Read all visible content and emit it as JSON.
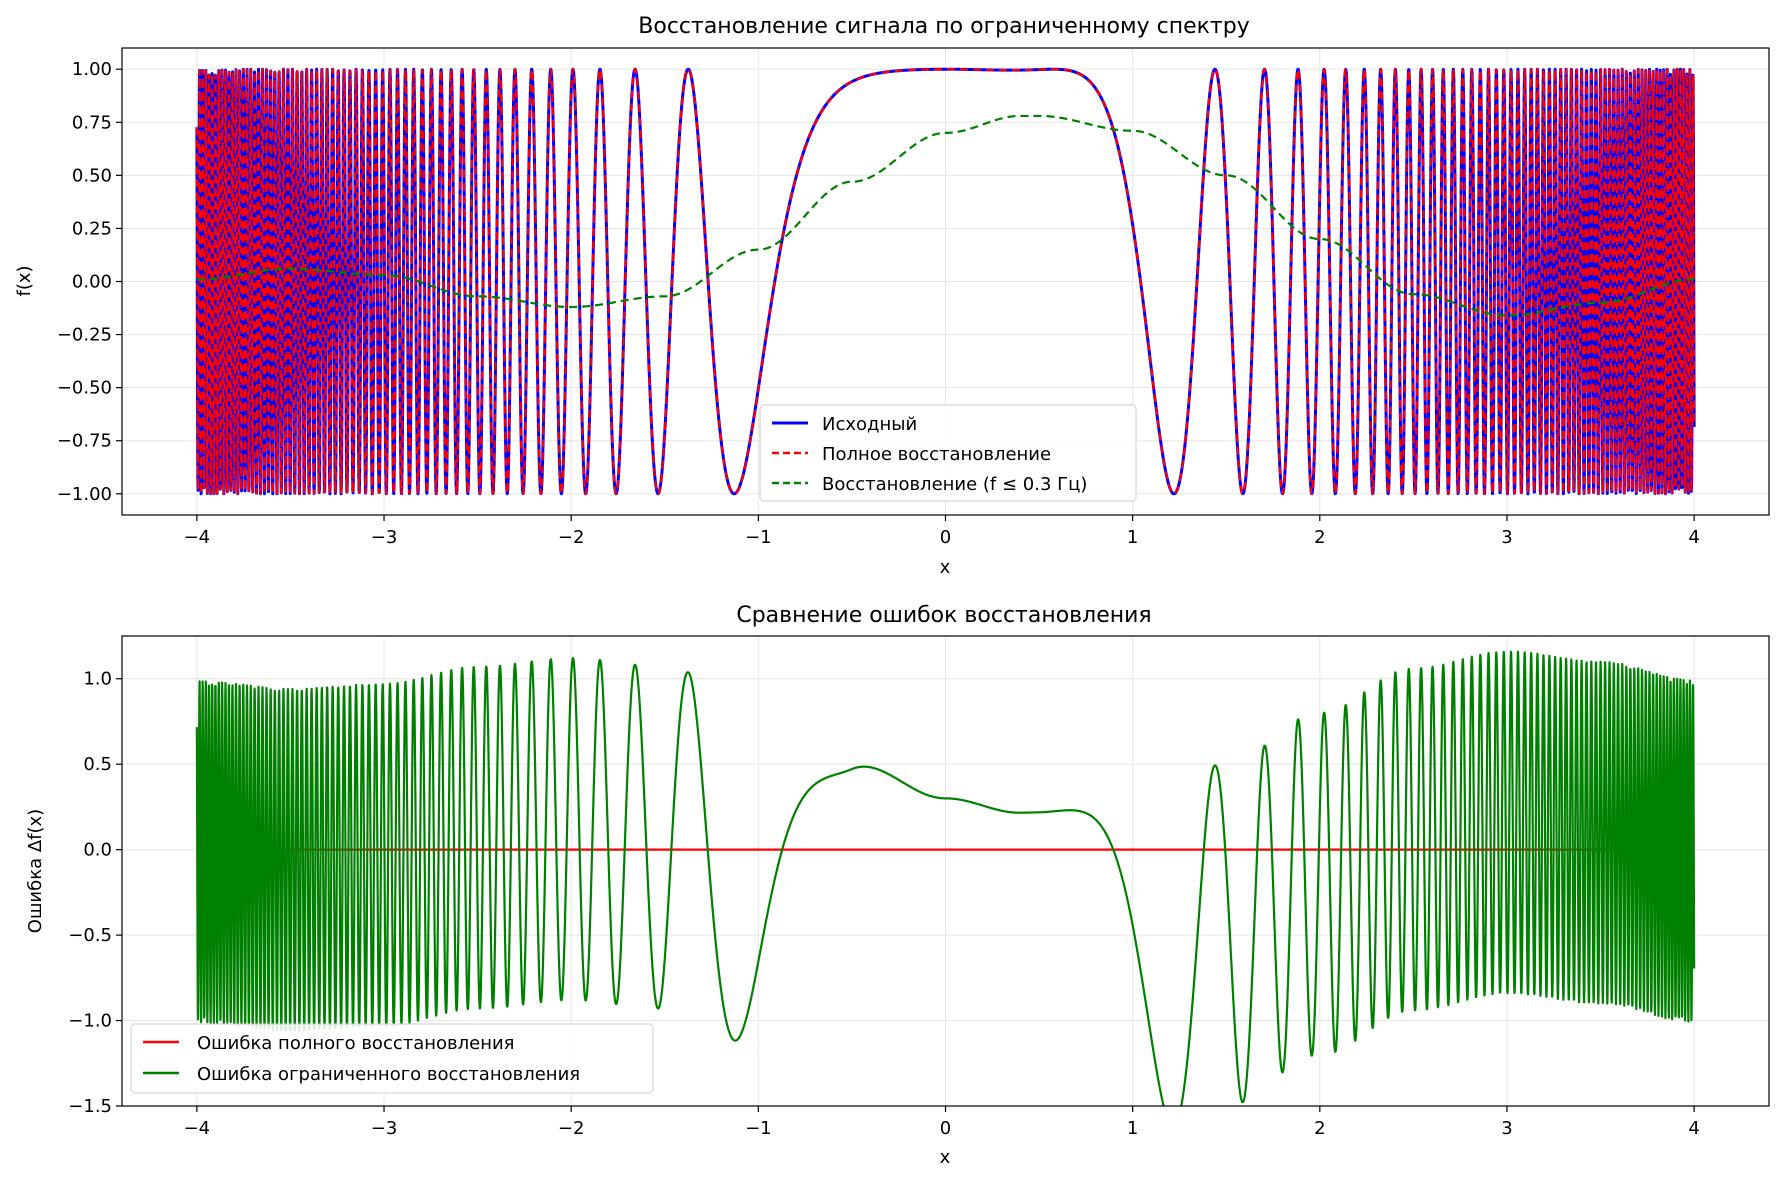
{
  "chart_data": [
    {
      "type": "line",
      "title": "Восстановление сигнала по ограниченному спектру",
      "xlabel": "x",
      "ylabel": "f(x)",
      "xlim": [
        -4.4,
        4.4
      ],
      "ylim": [
        -1.1,
        1.1
      ],
      "grid": true,
      "legend_position": "lower-center",
      "x_ticks": [
        -4,
        -3,
        -2,
        -1,
        0,
        1,
        2,
        3,
        4
      ],
      "x_tick_labels": [
        "−4",
        "−3",
        "−2",
        "−1",
        "0",
        "1",
        "2",
        "3",
        "4"
      ],
      "y_ticks": [
        -1.0,
        -0.75,
        -0.5,
        -0.25,
        0.0,
        0.25,
        0.5,
        0.75,
        1.0
      ],
      "y_tick_labels": [
        "−1.00",
        "−0.75",
        "−0.50",
        "−0.25",
        "0.00",
        "0.25",
        "0.50",
        "0.75",
        "1.00"
      ],
      "series": [
        {
          "name": "Исходный",
          "color": "#0000ff",
          "style": "solid",
          "model": "signal",
          "x_range": [
            -4,
            4
          ]
        },
        {
          "name": "Полное восстановление",
          "color": "#ff0000",
          "style": "dashed",
          "model": "signal",
          "x_range": [
            -4,
            4
          ]
        },
        {
          "name": "Восстановление (f ≤ 0.3 Гц)",
          "color": "#008000",
          "style": "dashed",
          "model": "lowpass",
          "x": [
            -4.0,
            -3.5,
            -3.0,
            -2.5,
            -2.0,
            -1.5,
            -1.0,
            -0.5,
            0.0,
            0.4,
            0.5,
            1.0,
            1.5,
            2.0,
            2.5,
            3.0,
            3.5,
            4.0
          ],
          "y": [
            0.01,
            0.06,
            0.03,
            -0.07,
            -0.12,
            -0.07,
            0.15,
            0.47,
            0.7,
            0.78,
            0.78,
            0.71,
            0.5,
            0.2,
            -0.06,
            -0.16,
            -0.1,
            0.01
          ]
        }
      ]
    },
    {
      "type": "line",
      "title": "Сравнение ошибок восстановления",
      "xlabel": "x",
      "ylabel": "Ошибка Δf(x)",
      "xlim": [
        -4.4,
        4.4
      ],
      "ylim": [
        -1.5,
        1.25
      ],
      "grid": true,
      "legend_position": "lower-left",
      "x_ticks": [
        -4,
        -3,
        -2,
        -1,
        0,
        1,
        2,
        3,
        4
      ],
      "x_tick_labels": [
        "−4",
        "−3",
        "−2",
        "−1",
        "0",
        "1",
        "2",
        "3",
        "4"
      ],
      "y_ticks": [
        -1.5,
        -1.0,
        -0.5,
        0.0,
        0.5,
        1.0
      ],
      "y_tick_labels": [
        "−1.5",
        "−1.0",
        "−0.5",
        "0.0",
        "0.5",
        "1.0"
      ],
      "series": [
        {
          "name": "Ошибка полного восстановления",
          "color": "#ff0000",
          "style": "solid",
          "model": "zero",
          "x_range": [
            -4,
            4
          ]
        },
        {
          "name": "Ошибка ограниченного восстановления",
          "color": "#008000",
          "style": "solid",
          "model": "signal_minus_lowpass",
          "x_range": [
            -4,
            4
          ]
        }
      ]
    }
  ]
}
